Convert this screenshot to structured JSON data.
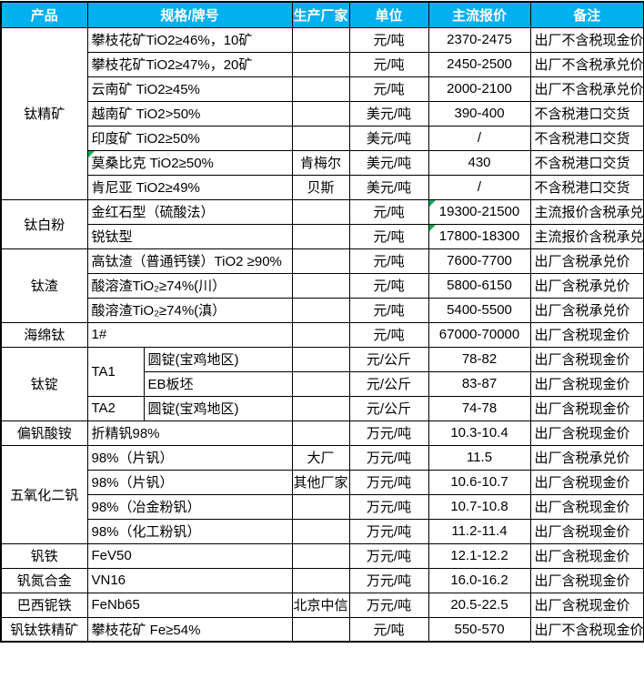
{
  "table": {
    "columns": [
      "产品",
      "规格/牌号",
      "生产厂家",
      "单位",
      "主流报价",
      "备注"
    ],
    "groups": [
      {
        "product": "钛精矿",
        "rows": [
          {
            "spec": "攀枝花矿TiO2≥46%，10矿",
            "maker": "",
            "unit": "元/吨",
            "price": "2370-2475",
            "note": "出厂不含税现金价"
          },
          {
            "spec": "攀枝花矿TiO2≥47%，20矿",
            "maker": "",
            "unit": "元/吨",
            "price": "2450-2500",
            "note": "出厂不含税承兑价"
          },
          {
            "spec": "云南矿 TiO2≥45%",
            "maker": "",
            "unit": "元/吨",
            "price": "2000-2100",
            "note": "出厂不含税承兑价"
          },
          {
            "spec": "越南矿 TiO2>50%",
            "maker": "",
            "unit": "美元/吨",
            "price": "390-400",
            "note": "不含税港口交货"
          },
          {
            "spec": "印度矿 TiO2≥50%",
            "maker": "",
            "unit": "美元/吨",
            "price": "/",
            "note": "不含税港口交货"
          },
          {
            "spec": "莫桑比克 TiO2≥50%",
            "spec_marker": true,
            "maker": "肯梅尔",
            "unit": "美元/吨",
            "price": "430",
            "note": "不含税港口交货"
          },
          {
            "spec": "肯尼亚 TiO2≥49%",
            "maker": "贝斯",
            "unit": "美元/吨",
            "price": "/",
            "note": "不含税港口交货"
          }
        ]
      },
      {
        "product": "钛白粉",
        "rows": [
          {
            "spec": "金红石型（硫酸法）",
            "maker": "",
            "unit": "元/吨",
            "price": "19300-21500",
            "price_marker": true,
            "note": "主流报价含税承兑"
          },
          {
            "spec": "锐钛型",
            "maker": "",
            "unit": "元/吨",
            "price": "17800-18300",
            "price_marker": true,
            "note": "主流报价含税承兑"
          }
        ]
      },
      {
        "product": "钛渣",
        "rows": [
          {
            "spec": "高钛渣（普通钙镁）TiO2 ≥90%",
            "maker": "",
            "unit": "元/吨",
            "price": "7600-7700",
            "note": "出厂含税承兑价"
          },
          {
            "spec": "酸溶渣TiO₂≥74%(川）",
            "maker": "",
            "unit": "元/吨",
            "price": "5800-6150",
            "note": "出厂含税承兑价"
          },
          {
            "spec": "酸溶渣TiO₂≥74%(滇）",
            "maker": "",
            "unit": "元/吨",
            "price": "5400-5500",
            "note": "出厂含税承兑价"
          }
        ]
      },
      {
        "product": "海绵钛",
        "rows": [
          {
            "spec": "1#",
            "maker": "",
            "unit": "元/吨",
            "price": "67000-70000",
            "note": "出厂含税现金价"
          }
        ]
      },
      {
        "product": "钛锭",
        "split": true,
        "rows": [
          {
            "grade": "TA1",
            "grade_rowspan": 2,
            "spec": "圆锭(宝鸡地区)",
            "maker": "",
            "unit": "元/公斤",
            "price": "78-82",
            "note": "出厂含税现金价"
          },
          {
            "spec": "EB板坯",
            "maker": "",
            "unit": "元/公斤",
            "price": "83-87",
            "note": "出厂含税现金价"
          },
          {
            "grade": "TA2",
            "grade_rowspan": 1,
            "spec": "圆锭(宝鸡地区)",
            "maker": "",
            "unit": "元/公斤",
            "price": "74-78",
            "note": "出厂含税现金价"
          }
        ]
      },
      {
        "product": "偏钒酸铵",
        "rows": [
          {
            "spec": "折精钒98%",
            "maker": "",
            "unit": "万元/吨",
            "price": "10.3-10.4",
            "note": "出厂含税现金价"
          }
        ]
      },
      {
        "product": "五氧化二钒",
        "rows": [
          {
            "spec": "98%（片钒）",
            "maker": "大厂",
            "unit": "万元/吨",
            "price": "11.5",
            "note": "出厂含税承兑价"
          },
          {
            "spec": "98%（片钒）",
            "maker": "其他厂家",
            "unit": "万元/吨",
            "price": "10.6-10.7",
            "note": "出厂含税现金价"
          },
          {
            "spec": "98%（冶金粉钒）",
            "maker": "",
            "unit": "万元/吨",
            "price": "10.7-10.8",
            "note": "出厂含税现金价"
          },
          {
            "spec": "98%（化工粉钒）",
            "maker": "",
            "unit": "万元/吨",
            "price": "11.2-11.4",
            "note": "出厂含税现金价"
          }
        ]
      },
      {
        "product": "钒铁",
        "rows": [
          {
            "spec": "FeV50",
            "maker": "",
            "unit": "万元/吨",
            "price": "12.1-12.2",
            "note": "出厂含税现金价"
          }
        ]
      },
      {
        "product": "钒氮合金",
        "rows": [
          {
            "spec": "VN16",
            "maker": "",
            "unit": "万元/吨",
            "price": "16.0-16.2",
            "note": "出厂含税现金价"
          }
        ]
      },
      {
        "product": "巴西铌铁",
        "rows": [
          {
            "spec": "FeNb65",
            "maker": "北京中信",
            "unit": "万元/吨",
            "price": "20.5-22.5",
            "note": "出厂含税现金价"
          }
        ]
      },
      {
        "product": "钒钛铁精矿",
        "rows": [
          {
            "spec": "攀枝花矿 Fe≥54%",
            "maker": "",
            "unit": "元/吨",
            "price": "550-570",
            "note": "出厂不含税现金价"
          }
        ]
      }
    ]
  },
  "colors": {
    "header_bg": "#00B0F0",
    "header_text": "#FFFFFF",
    "border": "#000000",
    "cell_marker_green": "#00B050"
  }
}
